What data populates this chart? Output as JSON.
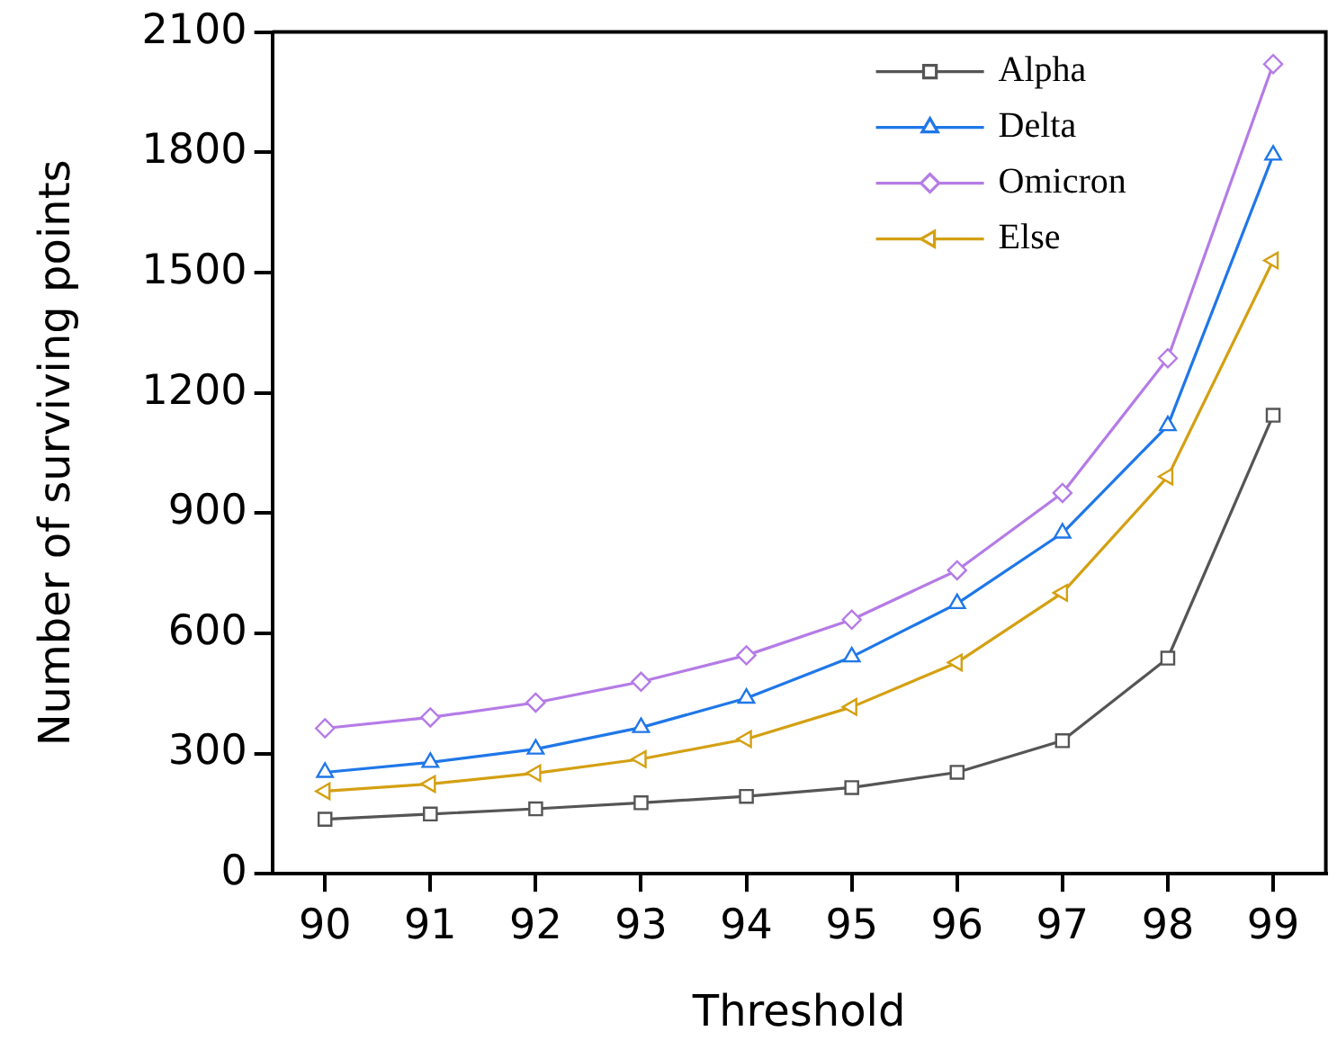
{
  "chart_data": {
    "type": "line",
    "xlabel": "Threshold",
    "ylabel": "Number of surviving points",
    "categories": [
      "90",
      "91",
      "92",
      "93",
      "94",
      "95",
      "96",
      "97",
      "98",
      "99"
    ],
    "ylim": [
      0,
      2100
    ],
    "yticks": [
      0,
      300,
      600,
      900,
      1200,
      1500,
      1800,
      2100
    ],
    "grid": false,
    "legend": "top right",
    "line_style": "solid",
    "series": [
      {
        "name": "Alpha",
        "color": "#555555",
        "marker": "square",
        "values": [
          136,
          149,
          162,
          177,
          193,
          215,
          253,
          332,
          538,
          1144
        ]
      },
      {
        "name": "Delta",
        "color": "#1f77e8",
        "marker": "triangle",
        "values": [
          253,
          278,
          311,
          365,
          438,
          541,
          674,
          850,
          1118,
          1793
        ]
      },
      {
        "name": "Omicron",
        "color": "#b57be6",
        "marker": "diamond",
        "values": [
          363,
          390,
          427,
          479,
          545,
          634,
          757,
          950,
          1286,
          2020
        ]
      },
      {
        "name": "Else",
        "color": "#d4a012",
        "marker": "triangle-left",
        "values": [
          206,
          224,
          251,
          286,
          336,
          416,
          527,
          701,
          991,
          1530
        ]
      }
    ]
  }
}
